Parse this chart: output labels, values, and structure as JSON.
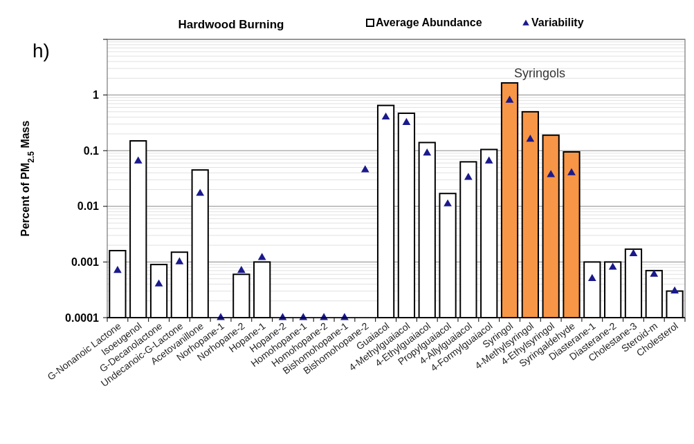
{
  "chart_data": {
    "type": "bar",
    "title": "Hardwood Burning",
    "ylabel": "Percent of PM$_{2.5}$ Mass",
    "log": true,
    "grid": "y",
    "legend": "top right",
    "marker": "triangle",
    "categories": [
      "G-Nonanoic Lactone",
      "Isoeugenol",
      "G-Decanolactone",
      "Undecanoic-G-Lactone",
      "Acetovanillone",
      "Norhopane-1",
      "Norhopane-2",
      "Hopane-1",
      "Hopane-2",
      "Homohopane-1",
      "Homohopane-2",
      "Bishomohopane-1",
      "Bishomohopane-2",
      "Guaiacol",
      "4-Methylguaiacol",
      "4-Ethylguaiacol",
      "Propylguaiacol",
      "4-Allylguaiacol",
      "4-Formylguaiacol",
      "Syringol",
      "4-Methylsyringol",
      "4-Ethylsyringol",
      "Syringaldehyde",
      "Diasterane-1",
      "Diasterane-2",
      "Cholestane-3",
      "Steroid-m",
      "Cholesterol"
    ],
    "ylim": [
      0.0001,
      10
    ],
    "yticks": [
      0.0001,
      0.001,
      0.01,
      0.1,
      1,
      {
        "value": 10,
        "label": null
      }
    ],
    "series": [
      {
        "name": "Average Abundance",
        "color": "#ffffff",
        "colors": [
          "#ffffff",
          "#ffffff",
          "#ffffff",
          "#ffffff",
          "#ffffff",
          "#ffffff",
          "#ffffff",
          "#ffffff",
          "#ffffff",
          "#ffffff",
          "#ffffff",
          "#ffffff",
          "#ffffff",
          "#ffffff",
          "#ffffff",
          "#ffffff",
          "#ffffff",
          "#ffffff",
          "#ffffff",
          "#f79646",
          "#f79646",
          "#f79646",
          "#f79646",
          "#ffffff",
          "#ffffff",
          "#ffffff",
          "#ffffff",
          "#ffffff"
        ],
        "values": [
          0.0016,
          0.15,
          0.0009,
          0.0015,
          0.045,
          null,
          0.0006,
          0.001,
          null,
          null,
          null,
          null,
          null,
          0.65,
          0.47,
          0.14,
          0.017,
          0.063,
          0.105,
          1.65,
          0.5,
          0.19,
          0.095,
          0.001,
          0.001,
          0.0017,
          0.0007,
          0.0003
        ]
      },
      {
        "name": "Variability",
        "type": "scatter",
        "color": "#1a1a8c",
        "values": [
          0.0007,
          0.065,
          0.0004,
          0.001,
          0.017,
          0.0001,
          0.0007,
          0.0012,
          0.0001,
          0.0001,
          0.0001,
          0.0001,
          0.045,
          0.4,
          0.32,
          0.09,
          0.011,
          0.033,
          0.065,
          0.8,
          0.16,
          0.037,
          0.04,
          0.0005,
          0.0008,
          0.0014,
          0.0006,
          0.0003
        ]
      }
    ],
    "annotations": [
      "h)",
      "Syringols"
    ]
  }
}
